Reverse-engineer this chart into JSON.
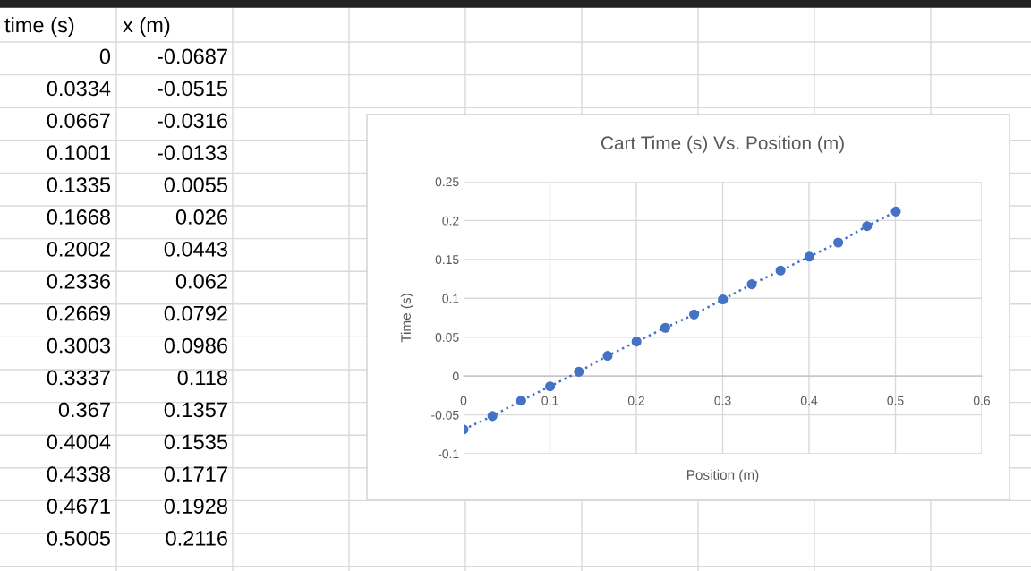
{
  "chart_data": {
    "type": "line",
    "title": "Cart Time (s) Vs. Position (m)",
    "xlabel": "Position (m)",
    "ylabel": "Time (s)",
    "x": [
      0,
      0.0334,
      0.0667,
      0.1001,
      0.1335,
      0.1668,
      0.2002,
      0.2336,
      0.2669,
      0.3003,
      0.3337,
      0.367,
      0.4004,
      0.4338,
      0.4671,
      0.5005
    ],
    "series": [
      {
        "color": "#4472c4",
        "values": [
          -0.0687,
          -0.0515,
          -0.0316,
          -0.0133,
          0.0055,
          0.026,
          0.0443,
          0.062,
          0.0792,
          0.0986,
          0.118,
          0.1357,
          0.1535,
          0.1717,
          0.1928,
          0.2116
        ]
      }
    ],
    "annotations": [
      "time (s)",
      "x (m)",
      "0",
      "-0.0687",
      "0.0334",
      "-0.0515",
      "0.0667",
      "-0.0316",
      "0.1001",
      "-0.0133",
      "0.1335",
      "0.0055",
      "0.1668",
      "0.026",
      "0.2002",
      "0.0443",
      "0.2336",
      "0.062",
      "0.2669",
      "0.0792",
      "0.3003",
      "0.0986",
      "0.3337",
      "0.118",
      "0.367",
      "0.1357",
      "0.4004",
      "0.1535",
      "0.4338",
      "0.1717",
      "0.4671",
      "0.1928",
      "0.5005",
      "0.2116"
    ],
    "marker": "circle",
    "line_style": "dotted",
    "grid": true,
    "xlim": [
      0,
      0.6
    ],
    "xticks": [
      0,
      0.1,
      0.2,
      0.3,
      0.4,
      0.5,
      0.6
    ],
    "ylim": [
      -0.1,
      0.25
    ],
    "yticks": [
      -0.1,
      -0.05,
      0,
      0.05,
      0.1,
      0.15,
      0.2,
      0.25
    ]
  }
}
